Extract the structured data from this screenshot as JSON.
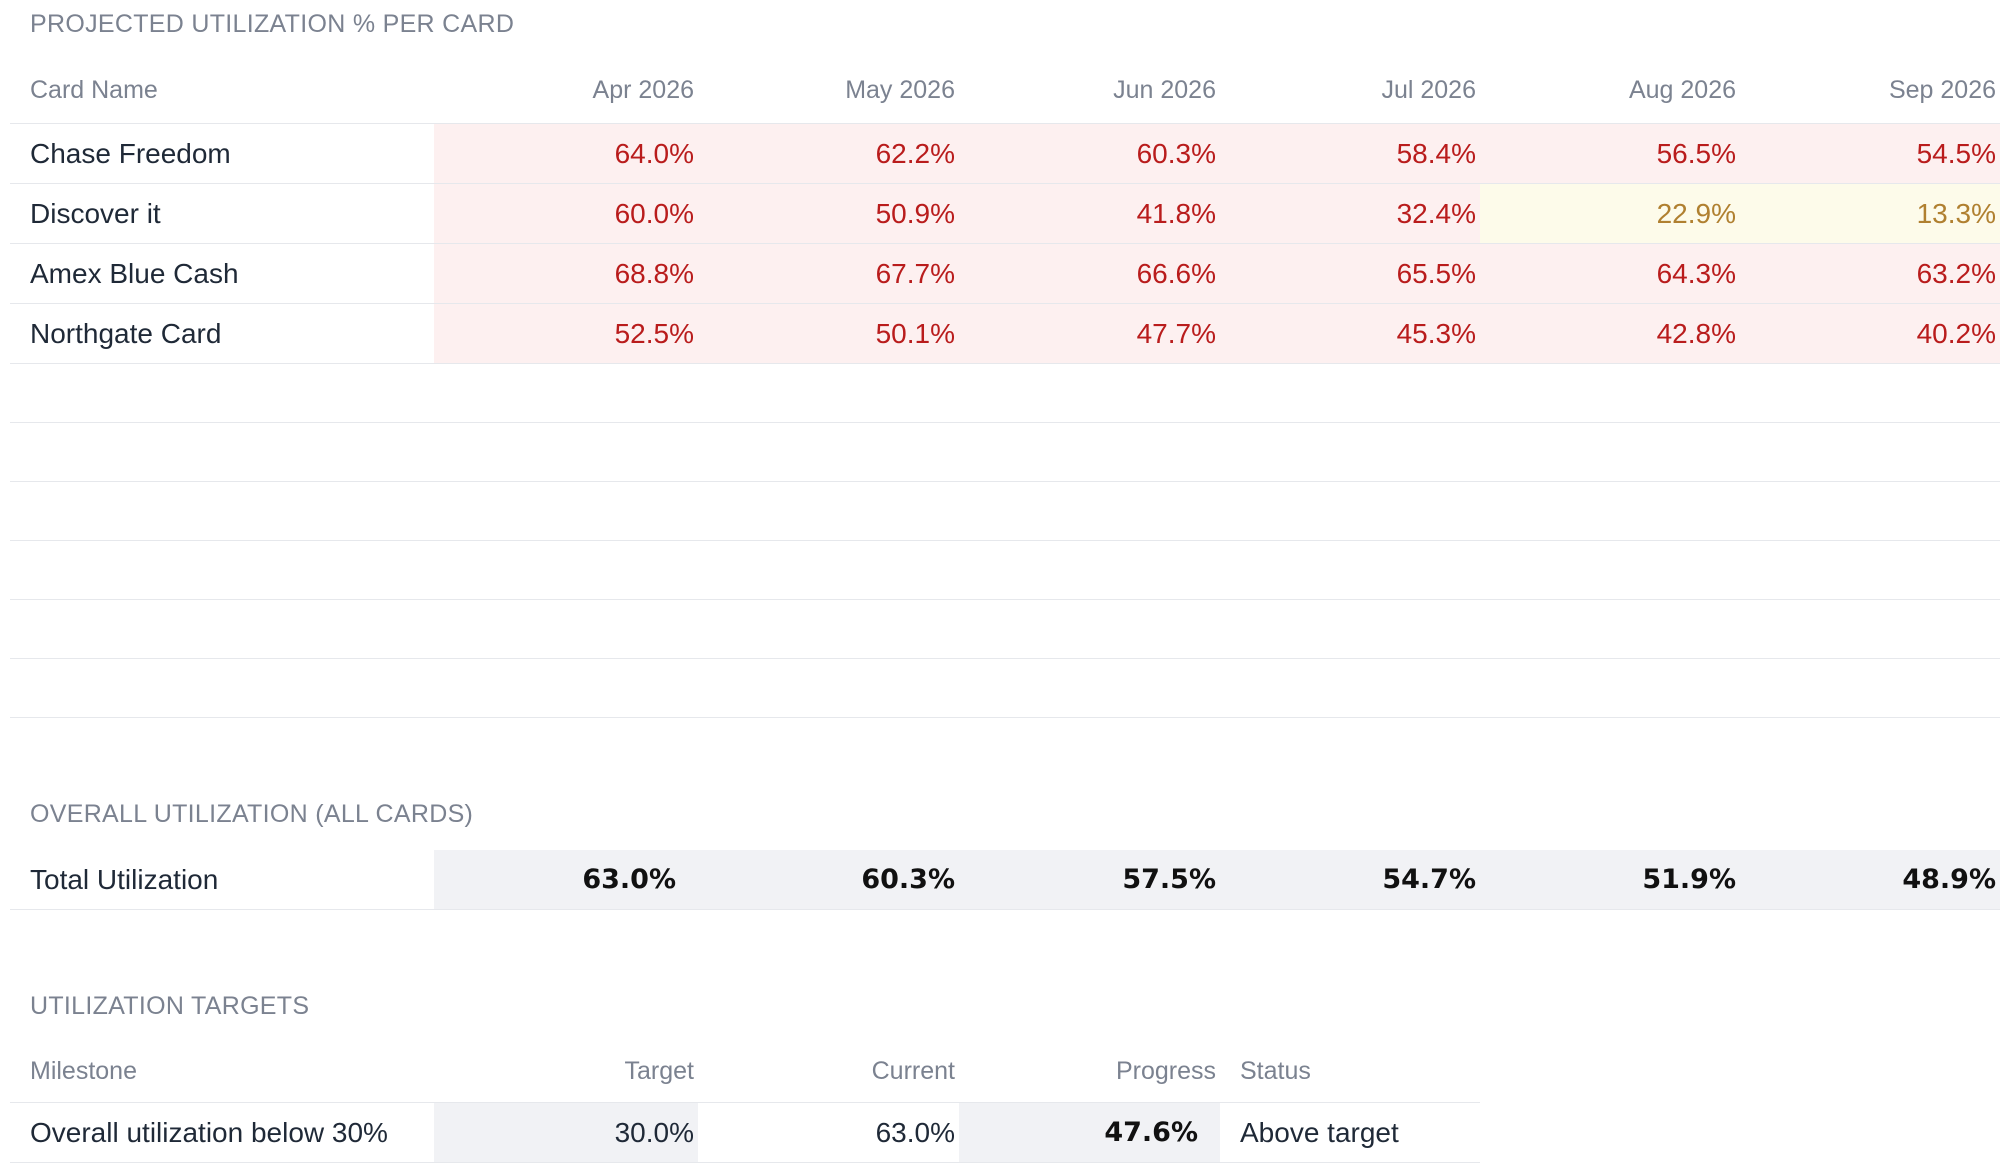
{
  "projection": {
    "title": "PROJECTED UTILIZATION % PER CARD",
    "header": [
      "Card Name",
      "Apr 2026",
      "May 2026",
      "Jun 2026",
      "Jul 2026",
      "Aug 2026",
      "Sep 2026"
    ],
    "rows": [
      {
        "name": "Chase Freedom",
        "values": [
          "64.0%",
          "62.2%",
          "60.3%",
          "58.4%",
          "56.5%",
          "54.5%"
        ],
        "levels": [
          "high",
          "high",
          "high",
          "high",
          "high",
          "high"
        ]
      },
      {
        "name": "Discover it",
        "values": [
          "60.0%",
          "50.9%",
          "41.8%",
          "32.4%",
          "22.9%",
          "13.3%"
        ],
        "levels": [
          "high",
          "high",
          "high",
          "high",
          "moderate",
          "moderate"
        ]
      },
      {
        "name": "Amex Blue Cash",
        "values": [
          "68.8%",
          "67.7%",
          "66.6%",
          "65.5%",
          "64.3%",
          "63.2%"
        ],
        "levels": [
          "high",
          "high",
          "high",
          "high",
          "high",
          "high"
        ]
      },
      {
        "name": "Northgate Card",
        "values": [
          "52.5%",
          "50.1%",
          "47.7%",
          "45.3%",
          "42.8%",
          "40.2%"
        ],
        "levels": [
          "high",
          "high",
          "high",
          "high",
          "high",
          "high"
        ]
      }
    ],
    "empty_rows": 6
  },
  "overall": {
    "title": "OVERALL UTILIZATION (ALL CARDS)",
    "label": "Total Utilization",
    "values": [
      "63.0%",
      "60.3%",
      "57.5%",
      "54.7%",
      "51.9%",
      "48.9%"
    ]
  },
  "targets": {
    "title": "UTILIZATION TARGETS",
    "header": [
      "Milestone",
      "Target",
      "Current",
      "Progress",
      "Status"
    ],
    "rows": [
      {
        "milestone": "Overall utilization below 30%",
        "target": "30.0%",
        "current": "63.0%",
        "progress": "47.6%",
        "status": "Above target"
      }
    ]
  },
  "colors": {
    "high_text": "#b91c1c",
    "high_bg": "#fdf0f0",
    "moderate_text": "#b08030",
    "moderate_bg": "#fdfbea",
    "total_bg": "#f1f2f5"
  }
}
